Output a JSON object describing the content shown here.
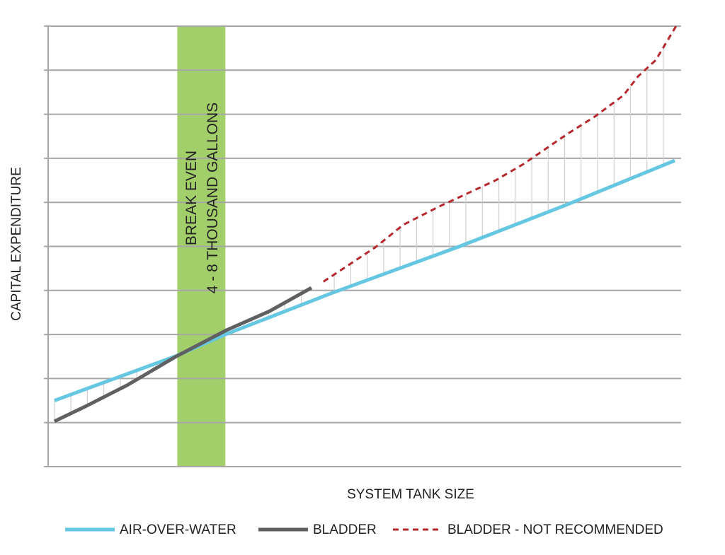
{
  "chart_data": {
    "type": "line",
    "ylabel": "CAPITAL EXPENDITURE",
    "xlabel": "SYSTEM TANK SIZE",
    "xlim": [
      0,
      100
    ],
    "ylim": [
      0,
      10
    ],
    "yticks": [
      0,
      1,
      2,
      3,
      4,
      5,
      6,
      7,
      8,
      9,
      10
    ],
    "grid": true,
    "band": {
      "from": 20.4,
      "to": 28,
      "color": "#a3cf6a",
      "label": [
        "BREAK EVEN",
        "4 - 8 THOUSAND GALLONS"
      ]
    },
    "series": [
      {
        "name": "AIR-OVER-WATER",
        "color": "#66c7e3",
        "dash": false,
        "x": [
          1,
          20,
          28,
          45,
          65,
          82,
          99
        ],
        "values": [
          1.5,
          2.5,
          3.0,
          3.95,
          5.0,
          5.95,
          6.95
        ]
      },
      {
        "name": "BLADDER",
        "color": "#5f6062",
        "dash": false,
        "x": [
          1,
          5.8,
          12.5,
          20.2,
          28.2,
          35,
          41.6
        ],
        "values": [
          1.03,
          1.36,
          1.85,
          2.5,
          3.1,
          3.53,
          4.06
        ]
      },
      {
        "name": "BLADDER - NOT RECOMMENDED",
        "color": "#b5282e",
        "dash": true,
        "x": [
          43.5,
          51.7,
          56.1,
          61.7,
          70.7,
          75.1,
          81.9,
          86.4,
          90.9,
          93.2,
          96,
          99.2
        ],
        "values": [
          4.2,
          4.98,
          5.49,
          5.9,
          6.5,
          6.87,
          7.54,
          7.95,
          8.43,
          8.86,
          9.23,
          10
        ]
      }
    ]
  }
}
